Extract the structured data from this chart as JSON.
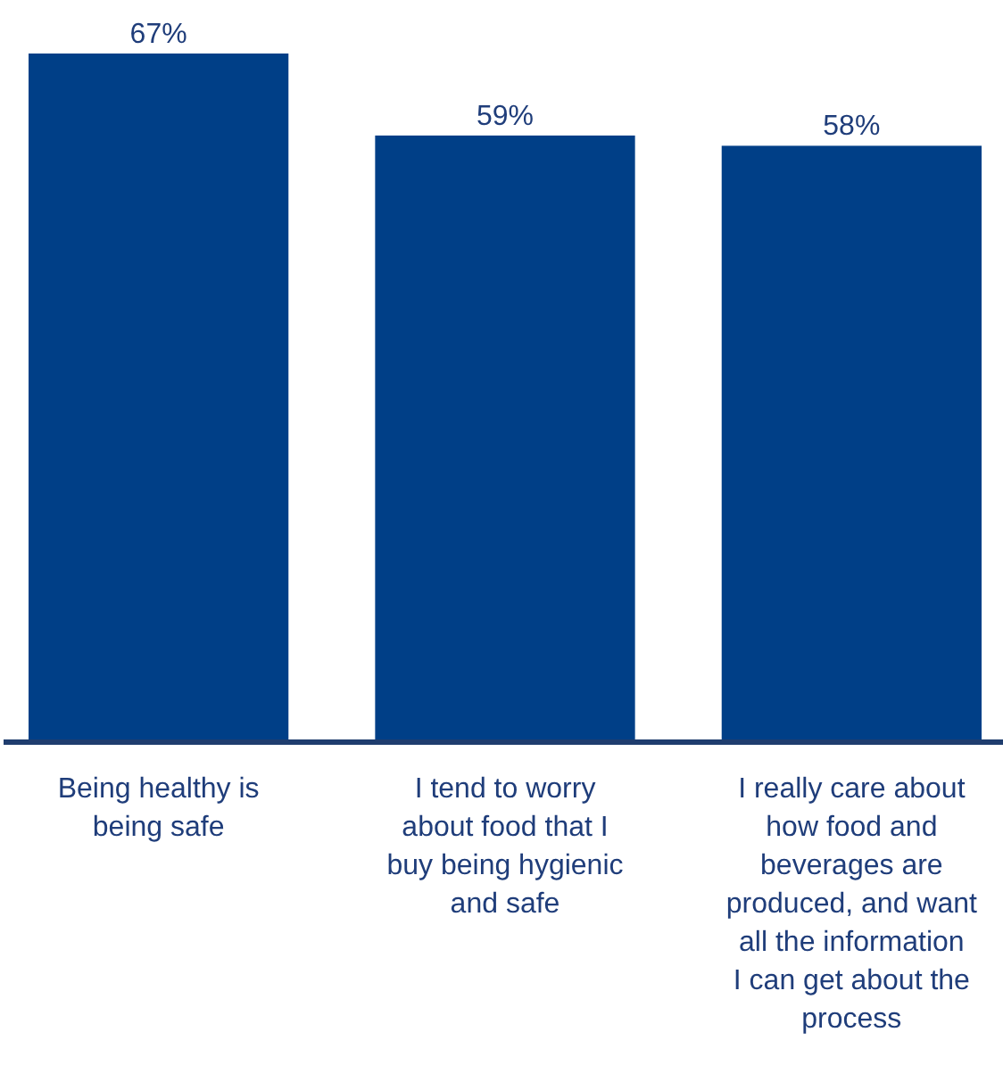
{
  "chart_data": {
    "type": "bar",
    "categories": [
      "Being healthy is being safe",
      "I tend to worry about food that I buy being hygienic and safe",
      "I really care about how food and beverages are produced, and want all the information I can get about the process"
    ],
    "values": [
      67,
      59,
      58
    ],
    "value_labels": [
      "67%",
      "59%",
      "58%"
    ],
    "color": "#003f87"
  }
}
